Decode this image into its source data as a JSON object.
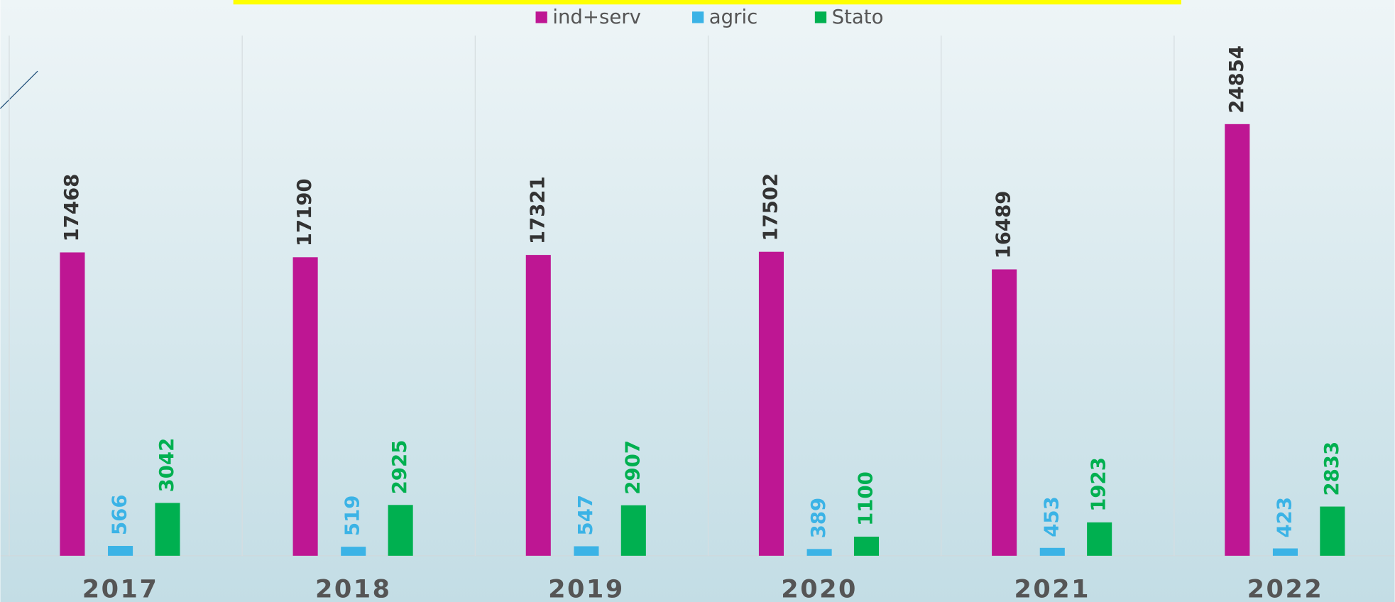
{
  "chart_data": {
    "type": "bar",
    "categories": [
      "2017",
      "2018",
      "2019",
      "2020",
      "2021",
      "2022"
    ],
    "series": [
      {
        "name": "ind+serv",
        "color": "#be1693",
        "label_color": "#333333",
        "values": [
          17468,
          17190,
          17321,
          17502,
          16489,
          24854
        ]
      },
      {
        "name": "agric",
        "color": "#3bb3e6",
        "label_color": "#3bb3e6",
        "values": [
          566,
          519,
          547,
          389,
          453,
          423
        ]
      },
      {
        "name": "Stato",
        "color": "#00b050",
        "label_color": "#00b050",
        "values": [
          3042,
          2925,
          2907,
          1100,
          1923,
          2833
        ]
      }
    ],
    "ylim": [
      0,
      32000
    ],
    "legend": "top"
  }
}
